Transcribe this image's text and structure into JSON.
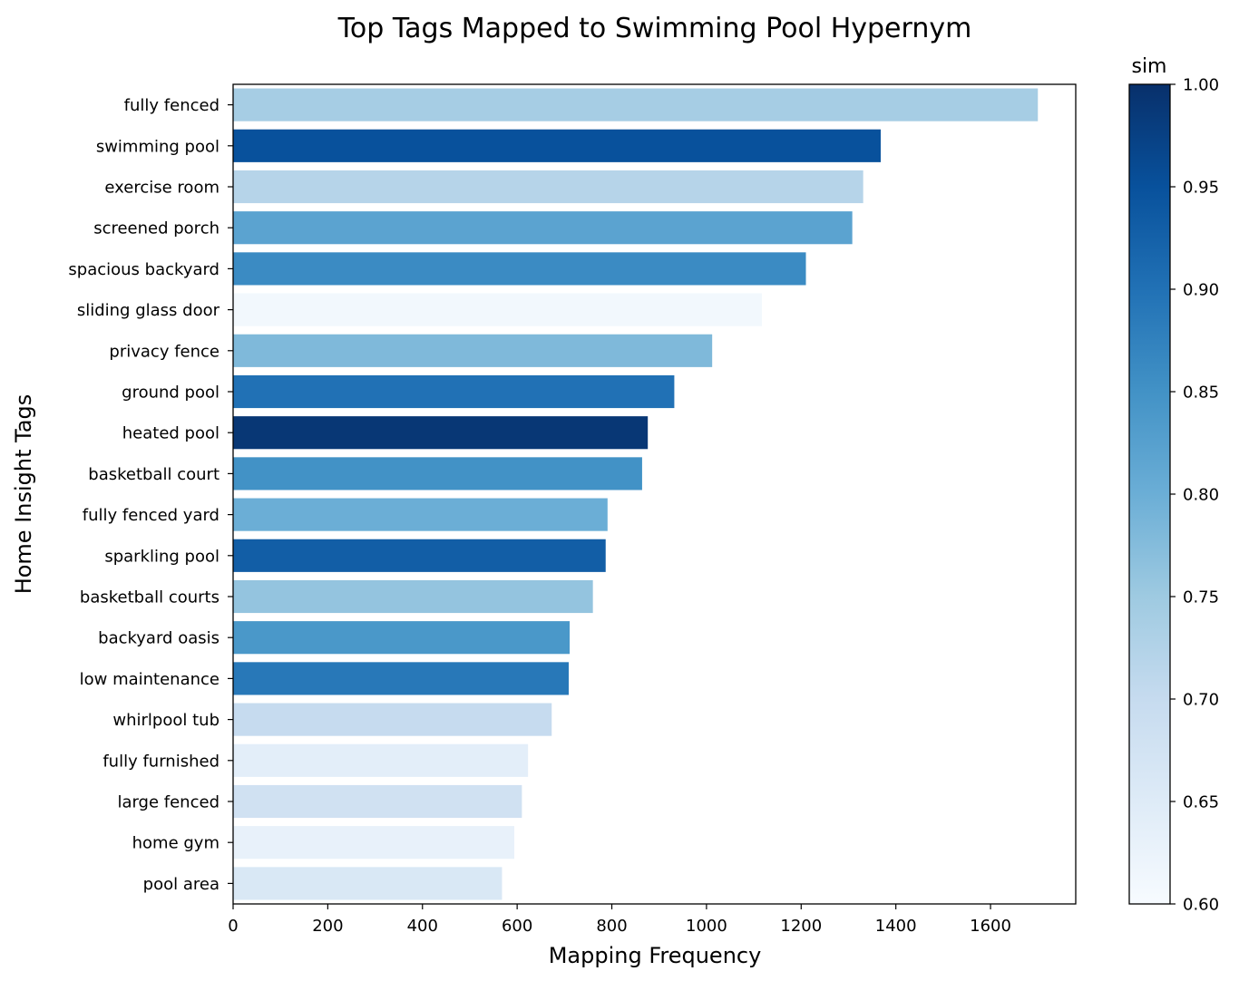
{
  "chart_data": {
    "type": "bar",
    "orientation": "horizontal",
    "title": "Top Tags Mapped to Swimming Pool Hypernym",
    "xlabel": "Mapping Frequency",
    "ylabel": "Home Insight Tags",
    "xlim": [
      0,
      1780
    ],
    "x_ticks": [
      "0",
      "200",
      "400",
      "600",
      "800",
      "1000",
      "1200",
      "1400",
      "1600"
    ],
    "categories": [
      "fully fenced",
      "swimming pool",
      "exercise room",
      "screened porch",
      "spacious backyard",
      "sliding glass door",
      "privacy fence",
      "ground pool",
      "heated pool",
      "basketball court",
      "fully fenced yard",
      "sparkling pool",
      "basketball courts",
      "backyard oasis",
      "low maintenance",
      "whirlpool tub",
      "fully furnished",
      "large fenced",
      "home gym",
      "pool area"
    ],
    "values": [
      1700,
      1368,
      1331,
      1308,
      1210,
      1117,
      1012,
      932,
      876,
      864,
      791,
      787,
      760,
      711,
      709,
      673,
      623,
      610,
      594,
      568
    ],
    "color_values": [
      0.74,
      0.95,
      0.72,
      0.82,
      0.86,
      0.61,
      0.78,
      0.9,
      0.99,
      0.85,
      0.8,
      0.93,
      0.76,
      0.84,
      0.89,
      0.7,
      0.64,
      0.68,
      0.63,
      0.66
    ],
    "colorbar": {
      "title": "sim",
      "range": [
        0.6,
        1.0
      ],
      "ticks": [
        "0.60",
        "0.65",
        "0.70",
        "0.75",
        "0.80",
        "0.85",
        "0.90",
        "0.95",
        "1.00"
      ],
      "colormap": "Blues"
    },
    "grid": false,
    "legend": "none"
  }
}
